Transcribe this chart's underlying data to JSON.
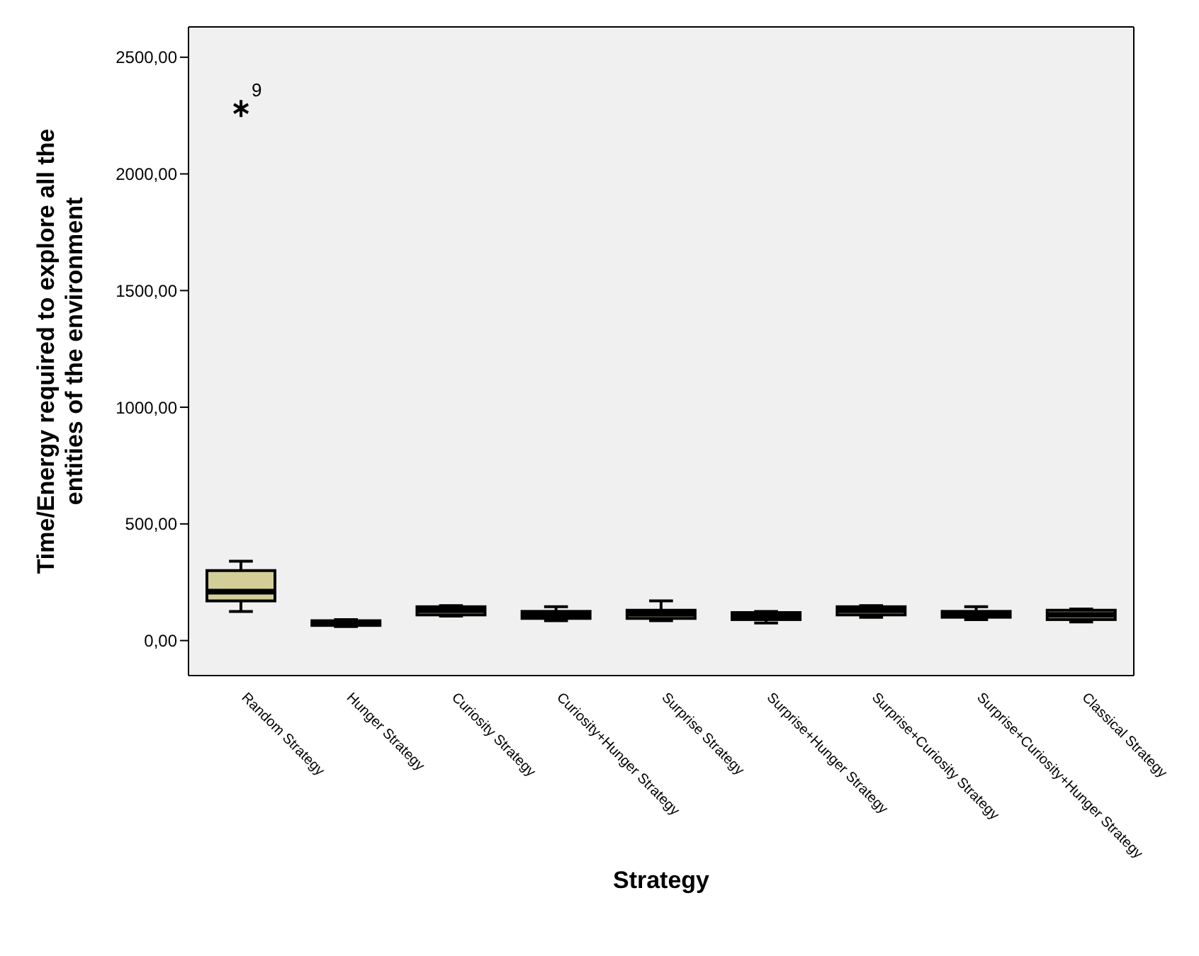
{
  "chart_data": {
    "type": "box",
    "xlabel": "Strategy",
    "ylabel": "Time/Energy required to explore all the entities of the environment",
    "categories": [
      "Random Strategy",
      "Hunger Strategy",
      "Curiosity Strategy",
      "Curiosity+Hunger Strategy",
      "Surprise Strategy",
      "Surprise+Hunger Strategy",
      "Surprise+Curiosity Strategy",
      "Surprise+Curiosity+Hunger Strategy",
      "Classical Strategy"
    ],
    "color": "#d3ce97",
    "boxes": [
      {
        "low": 125,
        "q1": 170,
        "median": 210,
        "q3": 300,
        "high": 340,
        "outliers": [
          2280
        ]
      },
      {
        "low": 60,
        "q1": 65,
        "median": 75,
        "q3": 85,
        "high": 90
      },
      {
        "low": 105,
        "q1": 110,
        "median": 130,
        "q3": 145,
        "high": 150
      },
      {
        "low": 85,
        "q1": 95,
        "median": 110,
        "q3": 125,
        "high": 145
      },
      {
        "low": 85,
        "q1": 95,
        "median": 115,
        "q3": 130,
        "high": 170
      },
      {
        "low": 75,
        "q1": 90,
        "median": 105,
        "q3": 120,
        "high": 125
      },
      {
        "low": 100,
        "q1": 110,
        "median": 130,
        "q3": 145,
        "high": 150
      },
      {
        "low": 90,
        "q1": 100,
        "median": 115,
        "q3": 125,
        "high": 145
      },
      {
        "low": 80,
        "q1": 90,
        "median": 110,
        "q3": 130,
        "high": 135
      }
    ],
    "annotations": [
      "9"
    ],
    "ylim": [
      -150,
      2630
    ],
    "yticks": [
      {
        "value": 0,
        "label": "0,00"
      },
      {
        "value": 500,
        "label": "500,00"
      },
      {
        "value": 1000,
        "label": "1000,00"
      },
      {
        "value": 1500,
        "label": "1500,00"
      },
      {
        "value": 2000,
        "label": "2000,00"
      },
      {
        "value": 2500,
        "label": "2500,00"
      }
    ],
    "grid": false,
    "legend": false,
    "marker": "star"
  }
}
